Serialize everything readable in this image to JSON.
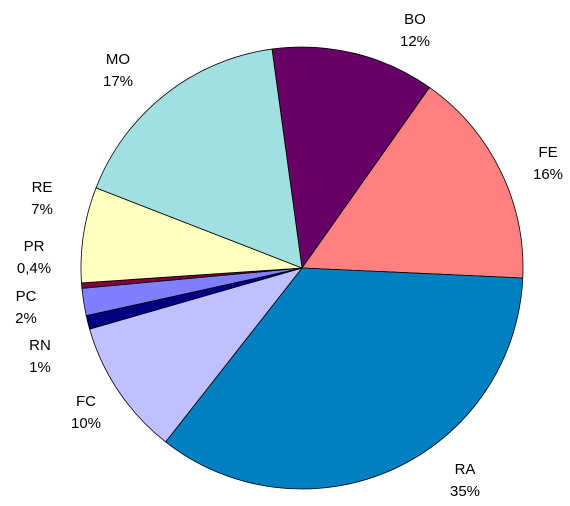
{
  "chart_data": {
    "type": "pie",
    "categories": [
      "BO",
      "FE",
      "RA",
      "FC",
      "RN",
      "PC",
      "PR",
      "RE",
      "MO"
    ],
    "values": [
      12,
      16,
      35,
      10,
      1,
      2,
      0.4,
      7,
      17
    ],
    "value_labels": [
      "12%",
      "16%",
      "35%",
      "10%",
      "1%",
      "2%",
      "0,4%",
      "7%",
      "17%"
    ],
    "colors": [
      "#660066",
      "#ff8080",
      "#0080c0",
      "#c0c0ff",
      "#000080",
      "#8080ff",
      "#800040",
      "#ffffc0",
      "#a0e0e0"
    ]
  }
}
